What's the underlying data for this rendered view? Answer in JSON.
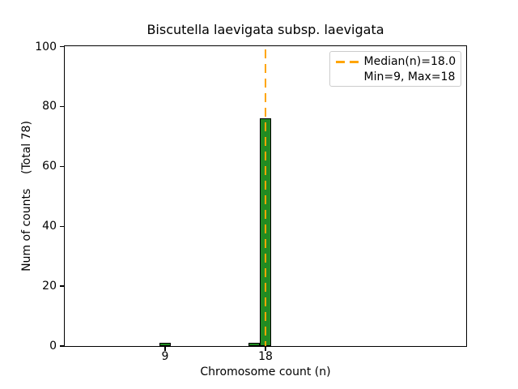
{
  "chart_data": {
    "type": "bar",
    "title": "Biscutella laevigata subsp. laevigata",
    "xlabel": "Chromosome count (n)",
    "ylabel": "Num of counts    (Total 78)",
    "total_counts": 78,
    "categories": [
      9,
      17,
      18
    ],
    "values": [
      1,
      1,
      76
    ],
    "bar_width": 1,
    "xlim": [
      0,
      36
    ],
    "ylim": [
      0,
      100
    ],
    "xticks": [
      9,
      18
    ],
    "yticks": [
      0,
      20,
      40,
      60,
      80,
      100
    ],
    "grid": false,
    "bar_color": "#228B22",
    "bar_edge_color": "#000000",
    "median_line": {
      "x": 18,
      "value_label": "Median(n)=18.0",
      "color": "#FFA500",
      "style": "dashed"
    },
    "stats": {
      "median": 18.0,
      "min": 9,
      "max": 18
    },
    "legend": {
      "position": "upper right",
      "entries": [
        {
          "label": "Median(n)=18.0",
          "handle": "orange-dashed-line"
        },
        {
          "label": "Min=9, Max=18",
          "handle": "none"
        }
      ]
    }
  }
}
